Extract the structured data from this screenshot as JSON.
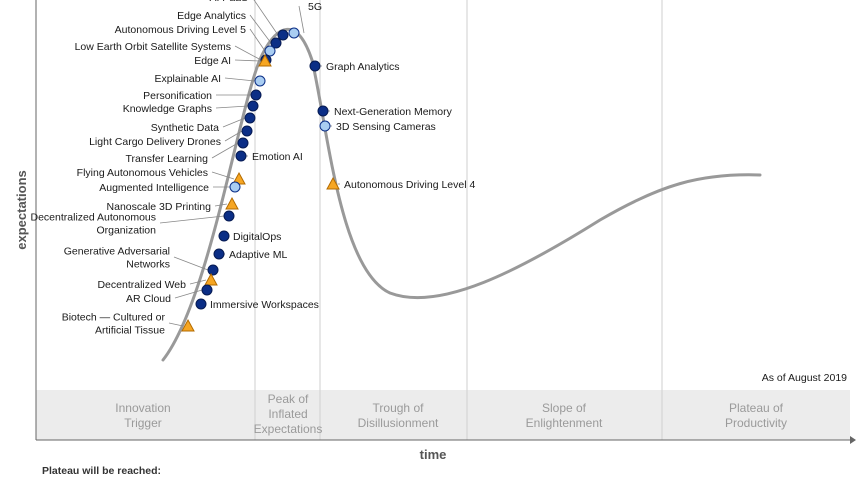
{
  "chart": {
    "y_axis_label": "expectations",
    "x_axis_label": "time",
    "as_of": "As of August 2019",
    "footer_title": "Plateau will be reached:",
    "phases": [
      {
        "label": [
          "Innovation",
          "Trigger"
        ]
      },
      {
        "label": [
          "Peak of",
          "Inflated",
          "Expectations"
        ]
      },
      {
        "label": [
          "Trough of",
          "Disillusionment"
        ]
      },
      {
        "label": [
          "Slope of",
          "Enlightenment"
        ]
      },
      {
        "label": [
          "Plateau of",
          "Productivity"
        ]
      }
    ],
    "marker_colors": {
      "less_than_2_years": "#a9cdf2",
      "2_to_5_years": "#0b2e86",
      "5_to_10_years": "#f6a623",
      "more_than_10_years": "#f6a623"
    },
    "technologies": [
      {
        "name": "5G",
        "marker": "less_than_2_years",
        "side": "right"
      },
      {
        "name": "AI PaaS",
        "marker": "2_to_5_years",
        "side": "left"
      },
      {
        "name": "Edge Analytics",
        "marker": "2_to_5_years",
        "side": "left"
      },
      {
        "name": "Autonomous Driving Level 5",
        "marker": "less_than_2_years",
        "side": "left"
      },
      {
        "name": "Low Earth Orbit Satellite Systems",
        "marker": "2_to_5_years",
        "side": "left"
      },
      {
        "name": "Edge AI",
        "marker": "5_to_10_years",
        "side": "left"
      },
      {
        "name": "Explainable AI",
        "marker": "less_than_2_years",
        "side": "left"
      },
      {
        "name": "Personification",
        "marker": "2_to_5_years",
        "side": "left"
      },
      {
        "name": "Knowledge Graphs",
        "marker": "2_to_5_years",
        "side": "left"
      },
      {
        "name": "Synthetic Data",
        "marker": "2_to_5_years",
        "side": "left"
      },
      {
        "name": "Light Cargo Delivery Drones",
        "marker": "2_to_5_years",
        "side": "left"
      },
      {
        "name": "Transfer Learning",
        "marker": "2_to_5_years",
        "side": "left"
      },
      {
        "name": "Emotion AI",
        "marker": "2_to_5_years",
        "side": "right"
      },
      {
        "name": "Flying Autonomous Vehicles",
        "marker": "5_to_10_years",
        "side": "left"
      },
      {
        "name": "Augmented Intelligence",
        "marker": "less_than_2_years",
        "side": "left"
      },
      {
        "name": "Nanoscale 3D Printing",
        "marker": "5_to_10_years",
        "side": "left"
      },
      {
        "name": [
          "Decentralized Autonomous",
          "Organization"
        ],
        "marker": "2_to_5_years",
        "side": "left"
      },
      {
        "name": "DigitalOps",
        "marker": "2_to_5_years",
        "side": "right"
      },
      {
        "name": "Adaptive ML",
        "marker": "2_to_5_years",
        "side": "right"
      },
      {
        "name": [
          "Generative Adversarial",
          "Networks"
        ],
        "marker": "2_to_5_years",
        "side": "left"
      },
      {
        "name": "Decentralized Web",
        "marker": "5_to_10_years",
        "side": "left"
      },
      {
        "name": "AR Cloud",
        "marker": "2_to_5_years",
        "side": "left"
      },
      {
        "name": "Immersive Workspaces",
        "marker": "2_to_5_years",
        "side": "right"
      },
      {
        "name": [
          "Biotech — Cultured or",
          "Artificial Tissue"
        ],
        "marker": "5_to_10_years",
        "side": "left"
      },
      {
        "name": "Graph Analytics",
        "marker": "2_to_5_years",
        "side": "right"
      },
      {
        "name": "Next-Generation Memory",
        "marker": "2_to_5_years",
        "side": "right"
      },
      {
        "name": "3D Sensing Cameras",
        "marker": "less_than_2_years",
        "side": "right"
      },
      {
        "name": "Autonomous Driving Level 4",
        "marker": "5_to_10_years",
        "side": "right"
      }
    ]
  }
}
